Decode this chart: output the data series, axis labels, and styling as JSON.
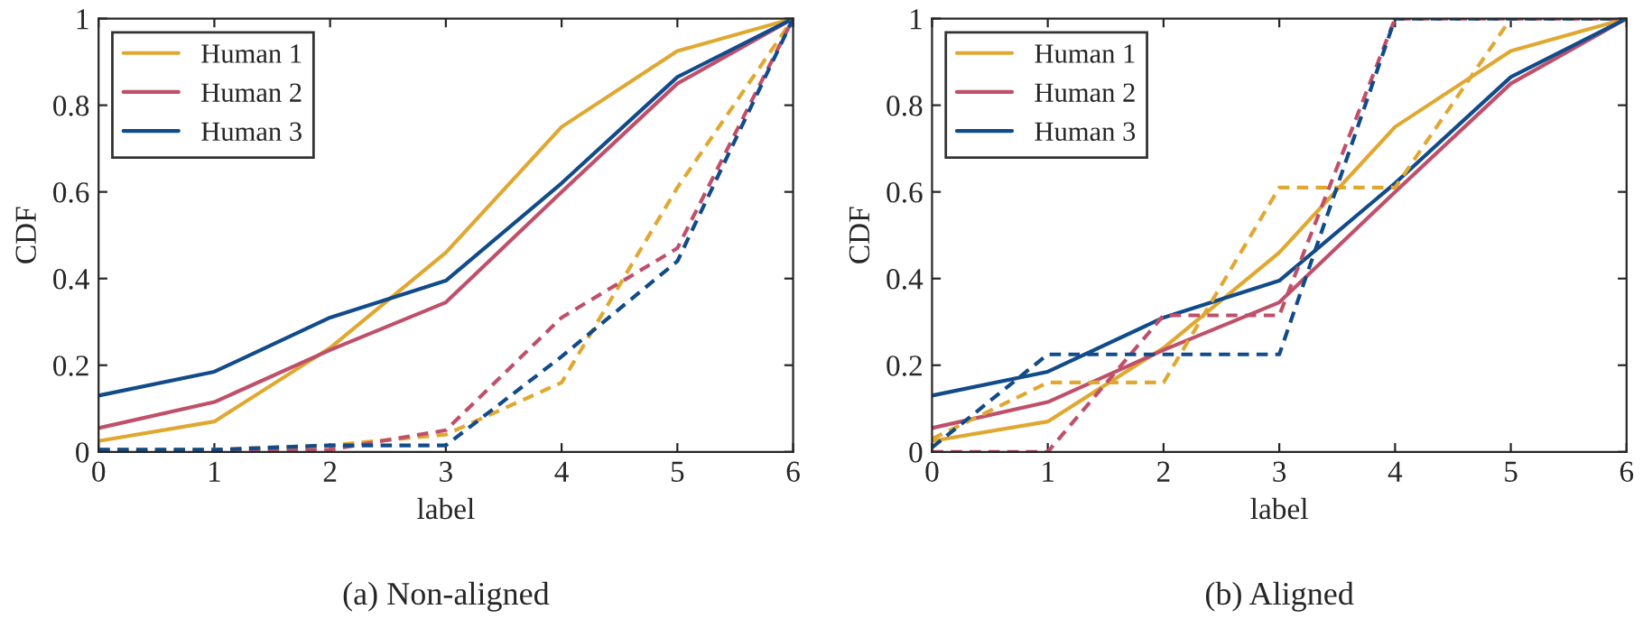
{
  "chart_data": [
    {
      "type": "line",
      "xlabel": "label",
      "ylabel": "CDF",
      "annotations": [
        "(a) Non-aligned"
      ],
      "x": [
        0,
        1,
        2,
        3,
        4,
        5,
        6
      ],
      "xlim": [
        0,
        6
      ],
      "ylim": [
        0,
        1
      ],
      "xticks": [
        0,
        1,
        2,
        3,
        4,
        5,
        6
      ],
      "yticks": [
        0,
        0.2,
        0.4,
        0.6,
        0.8,
        1
      ],
      "grid": false,
      "legend": "top left",
      "marker": "none",
      "series": [
        {
          "name": "Human 1",
          "color": "#e0a830",
          "line_style": "solid",
          "values": [
            0.025,
            0.07,
            0.24,
            0.46,
            0.75,
            0.925,
            1
          ]
        },
        {
          "name": "Human 2",
          "color": "#c0506a",
          "line_style": "solid",
          "values": [
            0.055,
            0.115,
            0.235,
            0.345,
            0.6,
            0.85,
            1
          ]
        },
        {
          "name": "Human 3",
          "color": "#114b8a",
          "line_style": "solid",
          "values": [
            0.13,
            0.185,
            0.31,
            0.395,
            0.62,
            0.865,
            1
          ]
        },
        {
          "color": "#e0a830",
          "line_style": "dashed",
          "values": [
            0.005,
            0.005,
            0.015,
            0.04,
            0.16,
            0.61,
            1
          ]
        },
        {
          "color": "#c0506a",
          "line_style": "dashed",
          "values": [
            0,
            0,
            0.005,
            0.05,
            0.31,
            0.47,
            1
          ]
        },
        {
          "color": "#114b8a",
          "line_style": "dashed",
          "values": [
            0.005,
            0.005,
            0.015,
            0.015,
            0.22,
            0.44,
            1
          ]
        }
      ]
    },
    {
      "type": "line",
      "xlabel": "label",
      "ylabel": "CDF",
      "annotations": [
        "(b) Aligned"
      ],
      "x": [
        0,
        1,
        2,
        3,
        4,
        5,
        6
      ],
      "xlim": [
        0,
        6
      ],
      "ylim": [
        0,
        1
      ],
      "xticks": [
        0,
        1,
        2,
        3,
        4,
        5,
        6
      ],
      "yticks": [
        0,
        0.2,
        0.4,
        0.6,
        0.8,
        1
      ],
      "grid": false,
      "legend": "top left",
      "marker": "none",
      "series": [
        {
          "name": "Human 1",
          "color": "#e0a830",
          "line_style": "solid",
          "values": [
            0.025,
            0.07,
            0.24,
            0.46,
            0.75,
            0.925,
            1
          ]
        },
        {
          "name": "Human 2",
          "color": "#c0506a",
          "line_style": "solid",
          "values": [
            0.055,
            0.115,
            0.235,
            0.345,
            0.6,
            0.85,
            1
          ]
        },
        {
          "name": "Human 3",
          "color": "#114b8a",
          "line_style": "solid",
          "values": [
            0.13,
            0.185,
            0.31,
            0.395,
            0.62,
            0.865,
            1
          ]
        },
        {
          "color": "#e0a830",
          "line_style": "dashed",
          "values": [
            0.03,
            0.16,
            0.16,
            0.61,
            0.61,
            1,
            1
          ]
        },
        {
          "color": "#c0506a",
          "line_style": "dashed",
          "values": [
            0,
            0,
            0.315,
            0.315,
            1,
            1,
            1
          ]
        },
        {
          "color": "#114b8a",
          "line_style": "dashed",
          "values": [
            0.01,
            0.225,
            0.225,
            0.225,
            1,
            1,
            1
          ]
        }
      ]
    }
  ]
}
